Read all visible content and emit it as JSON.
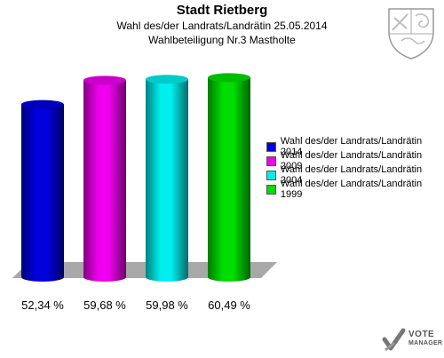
{
  "header": {
    "title": "Stadt Rietberg",
    "subtitle": "Wahl des/der Landrats/Landrätin 25.05.2014",
    "subtitle2": "Wahlbeteiligung Nr.3 Mastholte"
  },
  "brand": {
    "name_line1": "VOTE",
    "name_line2": "MANAGER"
  },
  "chart_data": {
    "type": "bar",
    "title": "Stadt Rietberg",
    "categories": [
      "Wahl des/der Landrats/Landrätin 2014",
      "Wahl des/der Landrats/Landrätin 2009",
      "Wahl des/der Landrats/Landrätin 2004",
      "Wahl des/der Landrats/Landrätin 1999"
    ],
    "values": [
      52.34,
      59.68,
      59.98,
      60.49
    ],
    "value_labels": [
      "52,34 %",
      "59,68 %",
      "59,98 %",
      "60,49 %"
    ],
    "colors": [
      "#0000dd",
      "#ee00ee",
      "#00eeee",
      "#00dd00"
    ],
    "ylim": [
      0,
      70
    ],
    "grid": false,
    "legend_position": "right"
  }
}
